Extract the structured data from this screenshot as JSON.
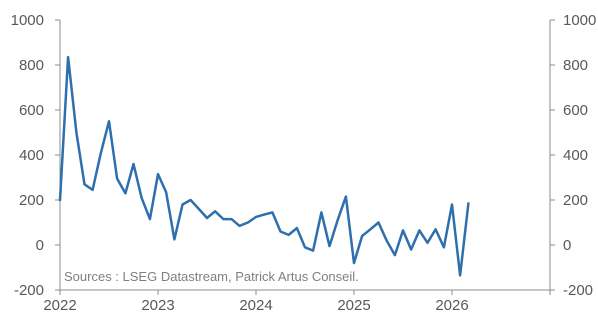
{
  "chart_data": {
    "type": "line",
    "title": "",
    "source": "Sources : LSEG Datastream, Patrick Artus Conseil.",
    "x_ticks": [
      "2022",
      "2023",
      "2024",
      "2025",
      "2026"
    ],
    "y_ticks_left": [
      "1000",
      "800",
      "600",
      "400",
      "200",
      "0",
      "-200"
    ],
    "y_ticks_right": [
      "1000",
      "800",
      "600",
      "400",
      "200",
      "0",
      "-200"
    ],
    "xlim": [
      2022.0,
      2027.0
    ],
    "ylim": [
      -200,
      1000
    ],
    "grid": false,
    "line_color": "#2e6fad",
    "series": [
      {
        "name": "",
        "x": [
          2022.0,
          2022.083,
          2022.167,
          2022.25,
          2022.333,
          2022.417,
          2022.5,
          2022.583,
          2022.667,
          2022.75,
          2022.833,
          2022.917,
          2023.0,
          2023.083,
          2023.167,
          2023.25,
          2023.333,
          2023.417,
          2023.5,
          2023.583,
          2023.667,
          2023.75,
          2023.833,
          2023.917,
          2024.0,
          2024.083,
          2024.167,
          2024.25,
          2024.333,
          2024.417,
          2024.5,
          2024.583,
          2024.667,
          2024.75,
          2024.833,
          2024.917,
          2025.0,
          2025.083,
          2025.167,
          2025.25,
          2025.333,
          2025.417,
          2025.5,
          2025.583,
          2025.667,
          2025.75,
          2025.833,
          2025.917,
          2026.0,
          2026.083,
          2026.167
        ],
        "values": [
          200,
          835,
          500,
          270,
          245,
          410,
          550,
          295,
          230,
          360,
          210,
          115,
          315,
          235,
          25,
          180,
          200,
          160,
          120,
          150,
          115,
          115,
          85,
          100,
          125,
          135,
          145,
          60,
          45,
          75,
          -10,
          -25,
          145,
          -5,
          110,
          215,
          -80,
          40,
          70,
          100,
          20,
          -45,
          65,
          -20,
          65,
          10,
          70,
          -10,
          180,
          -135,
          185
        ]
      }
    ]
  }
}
